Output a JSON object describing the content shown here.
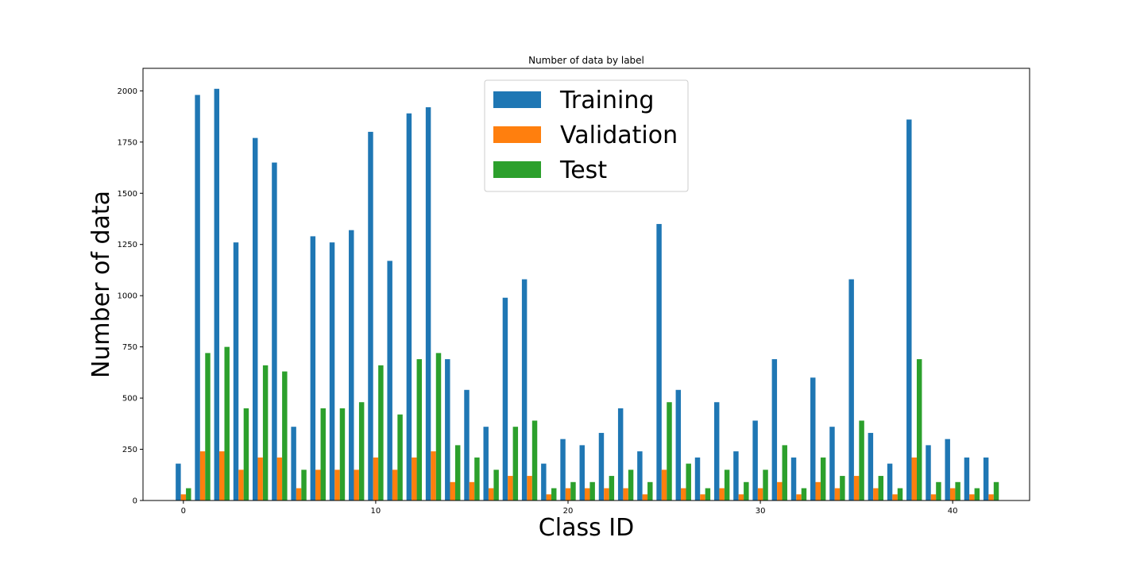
{
  "chart_data": {
    "type": "bar",
    "title": "Number of data by label",
    "xlabel": "Class ID",
    "ylabel": "Number of data",
    "xlim": [
      -2.1,
      44.0
    ],
    "ylim": [
      0,
      2110
    ],
    "xticks": [
      0,
      10,
      20,
      30,
      40
    ],
    "yticks": [
      0,
      250,
      500,
      750,
      1000,
      1250,
      1500,
      1750,
      2000
    ],
    "legend_placement": "upper center",
    "grid": false,
    "x": [
      0,
      1,
      2,
      3,
      4,
      5,
      6,
      7,
      8,
      9,
      10,
      11,
      12,
      13,
      14,
      15,
      16,
      17,
      18,
      19,
      20,
      21,
      22,
      23,
      24,
      25,
      26,
      27,
      28,
      29,
      30,
      31,
      32,
      33,
      34,
      35,
      36,
      37,
      38,
      39,
      40,
      41,
      42
    ],
    "series": [
      {
        "name": "Training",
        "color": "#1f77b4",
        "values": [
          180,
          1980,
          2010,
          1260,
          1770,
          1650,
          360,
          1290,
          1260,
          1320,
          1800,
          1170,
          1890,
          1920,
          690,
          540,
          360,
          990,
          1080,
          180,
          300,
          270,
          330,
          450,
          240,
          1350,
          540,
          210,
          480,
          240,
          390,
          690,
          210,
          600,
          360,
          1080,
          330,
          180,
          1860,
          270,
          300,
          210,
          210
        ]
      },
      {
        "name": "Validation",
        "color": "#ff7f0e",
        "values": [
          30,
          240,
          240,
          150,
          210,
          210,
          60,
          150,
          150,
          150,
          210,
          150,
          210,
          240,
          90,
          90,
          60,
          120,
          120,
          30,
          60,
          60,
          60,
          60,
          30,
          150,
          60,
          30,
          60,
          30,
          60,
          90,
          30,
          90,
          60,
          120,
          60,
          30,
          210,
          30,
          60,
          30,
          30
        ]
      },
      {
        "name": "Test",
        "color": "#2ca02c",
        "values": [
          60,
          720,
          750,
          450,
          660,
          630,
          150,
          450,
          450,
          480,
          660,
          420,
          690,
          720,
          270,
          210,
          150,
          360,
          390,
          60,
          90,
          90,
          120,
          150,
          90,
          480,
          180,
          60,
          150,
          90,
          150,
          270,
          60,
          210,
          120,
          390,
          120,
          60,
          690,
          90,
          90,
          60,
          90
        ]
      }
    ]
  }
}
